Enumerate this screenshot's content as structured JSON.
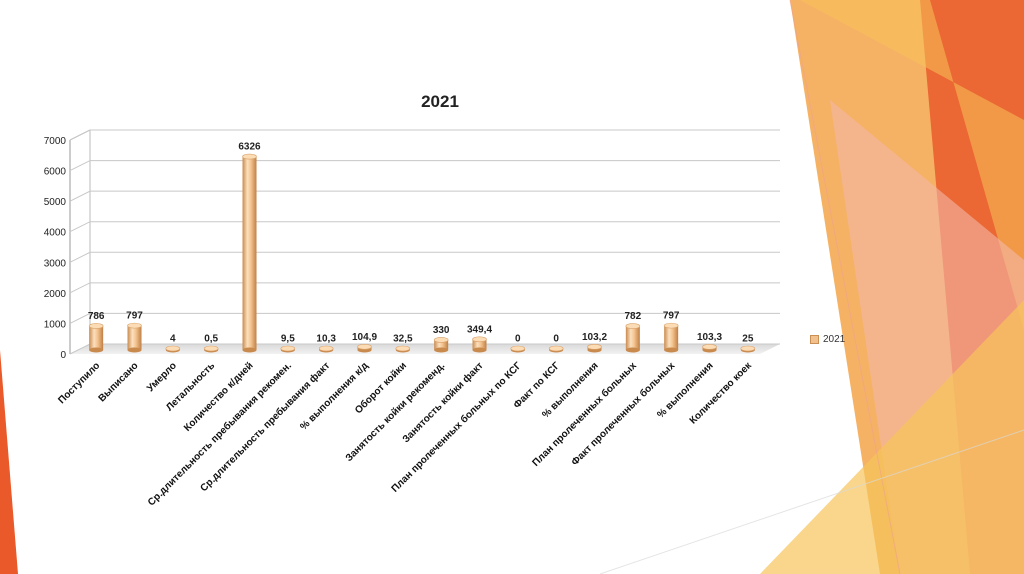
{
  "chart_data": {
    "type": "bar",
    "title": "2021",
    "categories": [
      "Поступило",
      "Выписано",
      "Умерло",
      "Летальность",
      "Количество к/дней",
      "Ср.длительность  пребывания рекомен.",
      "Ср.длительность  пребывания факт",
      "% выполнения к/д",
      "Оборот койки",
      "Занятость койки рекоменд.",
      "Занятость койки факт",
      "План пролеченных больных по КСГ",
      "Факт по КСГ",
      "% выполнения",
      "План пролеченных больных",
      "Факт пролеченных больных",
      "% выполнения",
      "Количество коек"
    ],
    "series": [
      {
        "name": "2021",
        "values": [
          786,
          797,
          4,
          0.5,
          6326,
          9.5,
          10.3,
          104.9,
          32.5,
          330,
          349.4,
          0,
          0,
          103.2,
          782,
          797,
          103.3,
          25
        ]
      }
    ],
    "data_labels": [
      "786",
      "797",
      "4",
      "0,5",
      "6326",
      "9,5",
      "10,3",
      "104,9",
      "32,5",
      "330",
      "349,4",
      "0",
      "0",
      "103,2",
      "782",
      "797",
      "103,3",
      "25"
    ],
    "y_ticks": [
      "0",
      "1000",
      "2000",
      "3000",
      "4000",
      "5000",
      "6000",
      "7000"
    ],
    "ylim": [
      0,
      7000
    ],
    "grid": true,
    "legend_position": "right",
    "bar_color": "#f2c08c"
  }
}
